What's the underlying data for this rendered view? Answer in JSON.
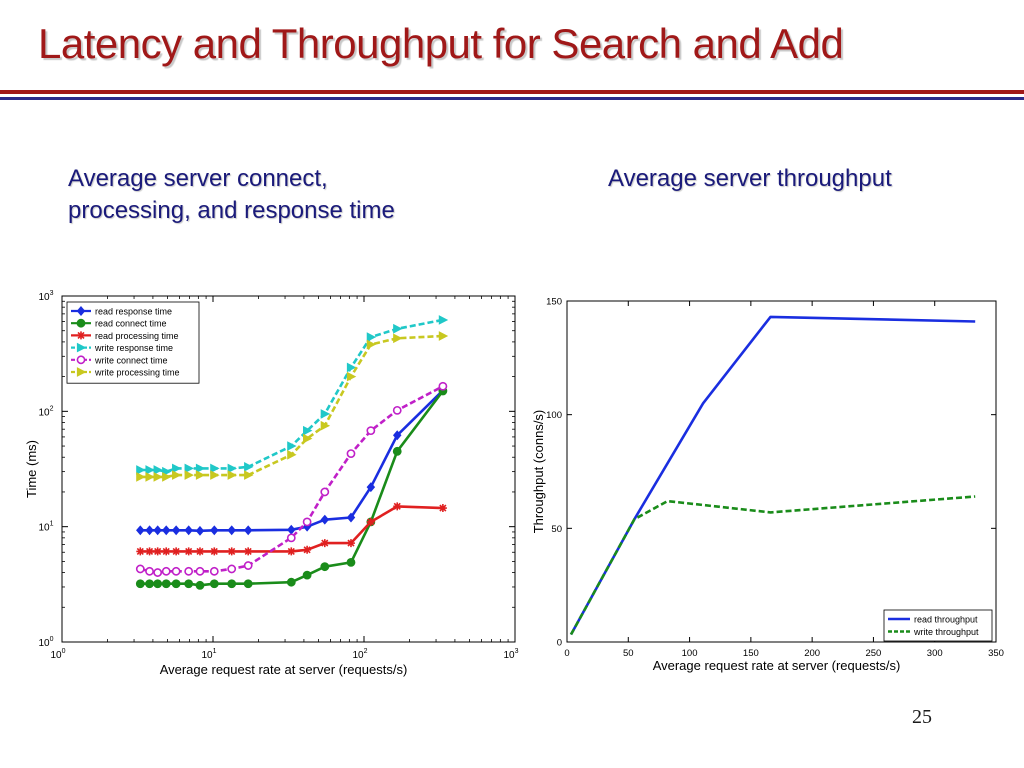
{
  "slide": {
    "title": "Latency and Throughput for Search and Add",
    "subtitle_left_line1": "Average server connect,",
    "subtitle_left_line2": "processing, and response time",
    "subtitle_right": "Average server throughput",
    "page_number": "25",
    "title_color": "#a01818",
    "subtitle_color": "#1a1a7a"
  },
  "chart_data": [
    {
      "type": "line",
      "title": "",
      "xlabel": "Average request rate at server (requests/s)",
      "ylabel": "Time (ms)",
      "xscale": "log",
      "yscale": "log",
      "xlim": [
        1,
        1000
      ],
      "ylim": [
        1,
        1000
      ],
      "xticks": [
        {
          "value": 1,
          "base": "10",
          "exp": "0"
        },
        {
          "value": 10,
          "base": "10",
          "exp": "1"
        },
        {
          "value": 100,
          "base": "10",
          "exp": "2"
        },
        {
          "value": 1000,
          "base": "10",
          "exp": "3"
        }
      ],
      "yticks": [
        {
          "value": 1,
          "base": "10",
          "exp": "0"
        },
        {
          "value": 10,
          "base": "10",
          "exp": "1"
        },
        {
          "value": 100,
          "base": "10",
          "exp": "2"
        },
        {
          "value": 1000,
          "base": "10",
          "exp": "3"
        }
      ],
      "legend_position": "top-left",
      "series": [
        {
          "name": "read response time",
          "color": "#1a2ee0",
          "dash": "solid",
          "marker": "diamond",
          "filled": true,
          "x": [
            3.3,
            3.8,
            4.3,
            4.9,
            5.7,
            6.9,
            8.2,
            10.2,
            13.3,
            17.1,
            33,
            42,
            55,
            82,
            111,
            166,
            333
          ],
          "y": [
            9.3,
            9.3,
            9.3,
            9.3,
            9.3,
            9.3,
            9.2,
            9.3,
            9.3,
            9.3,
            9.4,
            10,
            11.5,
            12,
            22,
            62,
            152
          ]
        },
        {
          "name": "read connect time",
          "color": "#1a8c1a",
          "dash": "solid",
          "marker": "circle",
          "filled": true,
          "x": [
            3.3,
            3.8,
            4.3,
            4.9,
            5.7,
            6.9,
            8.2,
            10.2,
            13.3,
            17.1,
            33,
            42,
            55,
            82,
            111,
            166,
            333
          ],
          "y": [
            3.2,
            3.2,
            3.2,
            3.2,
            3.2,
            3.2,
            3.1,
            3.2,
            3.2,
            3.2,
            3.3,
            3.8,
            4.5,
            4.9,
            11,
            45,
            150
          ]
        },
        {
          "name": "read processing time",
          "color": "#e02020",
          "dash": "solid",
          "marker": "star",
          "filled": true,
          "x": [
            3.3,
            3.8,
            4.3,
            4.9,
            5.7,
            6.9,
            8.2,
            10.2,
            13.3,
            17.1,
            33,
            42,
            55,
            82,
            111,
            166,
            333
          ],
          "y": [
            6.1,
            6.1,
            6.1,
            6.1,
            6.1,
            6.1,
            6.1,
            6.1,
            6.1,
            6.1,
            6.1,
            6.3,
            7.2,
            7.2,
            11,
            15,
            14.5
          ]
        },
        {
          "name": "write response time",
          "color": "#20c8c8",
          "dash": "dashed",
          "marker": "triangle-right",
          "filled": true,
          "x": [
            3.3,
            3.8,
            4.3,
            4.9,
            5.7,
            6.9,
            8.2,
            10.2,
            13.3,
            17.1,
            33,
            42,
            55,
            82,
            111,
            166,
            333
          ],
          "y": [
            31,
            31,
            31,
            30,
            32,
            32,
            32,
            32,
            32,
            33,
            50,
            68,
            95,
            240,
            440,
            520,
            620
          ]
        },
        {
          "name": "write connect time",
          "color": "#c020c8",
          "dash": "dashed",
          "marker": "circle",
          "filled": false,
          "x": [
            3.3,
            3.8,
            4.3,
            4.9,
            5.7,
            6.9,
            8.2,
            10.2,
            13.3,
            17.1,
            33,
            42,
            55,
            82,
            111,
            166,
            333
          ],
          "y": [
            4.3,
            4.1,
            4.0,
            4.1,
            4.1,
            4.1,
            4.1,
            4.1,
            4.3,
            4.6,
            8,
            11,
            20,
            43,
            68,
            102,
            165
          ]
        },
        {
          "name": "write processing time",
          "color": "#c8c820",
          "dash": "dashed",
          "marker": "triangle-right",
          "filled": true,
          "x": [
            3.3,
            3.8,
            4.3,
            4.9,
            5.7,
            6.9,
            8.2,
            10.2,
            13.3,
            17.1,
            33,
            42,
            55,
            82,
            111,
            166,
            333
          ],
          "y": [
            27,
            27,
            27,
            27,
            28,
            28,
            28,
            28,
            28,
            28,
            42,
            58,
            75,
            200,
            380,
            430,
            450
          ]
        }
      ]
    },
    {
      "type": "line",
      "title": "",
      "xlabel": "Average request rate at server (requests/s)",
      "ylabel": "Throughput (conns/s)",
      "xlim": [
        0,
        350
      ],
      "ylim": [
        0,
        150
      ],
      "xticks": [
        0,
        50,
        100,
        150,
        200,
        250,
        300,
        350
      ],
      "yticks": [
        0,
        50,
        100,
        150
      ],
      "legend_position": "bottom-right",
      "series": [
        {
          "name": "read throughput",
          "color": "#1a2ee0",
          "dash": "solid",
          "x": [
            3.3,
            55,
            111,
            166,
            333
          ],
          "y": [
            3.3,
            54,
            105,
            143,
            141
          ]
        },
        {
          "name": "write throughput",
          "color": "#1a8c1a",
          "dash": "dashed",
          "x": [
            3.3,
            55,
            82,
            166,
            333
          ],
          "y": [
            3.3,
            54,
            62,
            57,
            64
          ]
        }
      ]
    }
  ]
}
